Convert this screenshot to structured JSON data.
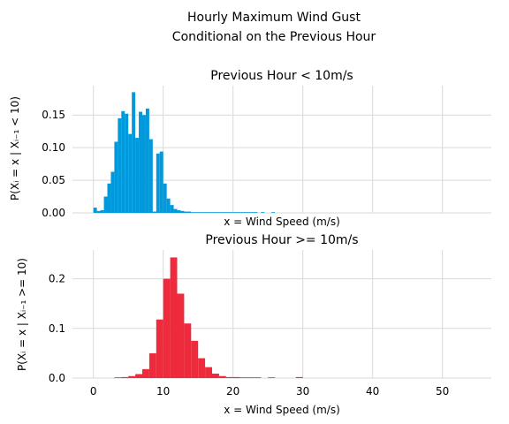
{
  "figure": {
    "title_line1": "Hourly Maximum Wind Gust",
    "title_line2": "Conditional on the Previous Hour"
  },
  "chart_data": [
    {
      "type": "bar",
      "title": "Previous Hour < 10m/s",
      "xlabel": "x = Wind Speed (m/s)",
      "ylabel": "P(Xᵢ = x | Xᵢ₋₁ < 10)",
      "xlim": [
        -3,
        57
      ],
      "ylim": [
        0,
        0.195
      ],
      "bin_width": 0.5,
      "xticks": [
        0,
        10,
        20,
        30,
        40,
        50
      ],
      "yticks": [
        0.0,
        0.05,
        0.1,
        0.15
      ],
      "ytick_labels": [
        "0.00",
        "0.05",
        "0.10",
        "0.15"
      ],
      "show_xtick_labels": false,
      "grid": true,
      "color": "#0099dc",
      "x": [
        0.0,
        0.5,
        1.0,
        1.5,
        2.0,
        2.5,
        3.0,
        3.5,
        4.0,
        4.5,
        5.0,
        5.5,
        6.0,
        6.5,
        7.0,
        7.5,
        8.0,
        8.5,
        9.0,
        9.5,
        10.0,
        10.5,
        11.0,
        11.5,
        12.0,
        12.5,
        13.0,
        13.5,
        14.0,
        14.5,
        15.0,
        15.5,
        16.0,
        16.5,
        17.0,
        17.5,
        18.0,
        18.5,
        19.0,
        19.5,
        20.0,
        20.5,
        21.0,
        21.5,
        22.0,
        22.5,
        23.0,
        24.0,
        25.5
      ],
      "values": [
        0.008,
        0.003,
        0.004,
        0.025,
        0.045,
        0.063,
        0.109,
        0.145,
        0.156,
        0.152,
        0.121,
        0.185,
        0.115,
        0.155,
        0.15,
        0.16,
        0.113,
        0.002,
        0.091,
        0.094,
        0.045,
        0.022,
        0.012,
        0.006,
        0.004,
        0.003,
        0.002,
        0.002,
        0.001,
        0.001,
        0.001,
        0.001,
        0.001,
        0.001,
        0.001,
        0.001,
        0.001,
        0.001,
        0.001,
        0.001,
        0.001,
        0.001,
        0.001,
        0.001,
        0.001,
        0.001,
        0.001,
        0.001,
        0.001
      ]
    },
    {
      "type": "bar",
      "title": "Previous Hour >= 10m/s",
      "xlabel": "x = Wind Speed (m/s)",
      "ylabel": "P(Xᵢ = x | Xᵢ₋₁ >= 10)",
      "xlim": [
        -3,
        57
      ],
      "ylim": [
        0,
        0.258
      ],
      "bin_width": 1,
      "xticks": [
        0,
        10,
        20,
        30,
        40,
        50
      ],
      "xtick_labels": [
        "0",
        "10",
        "20",
        "30",
        "40",
        "50"
      ],
      "yticks": [
        0.0,
        0.1,
        0.2
      ],
      "ytick_labels": [
        "0.0",
        "0.1",
        "0.2"
      ],
      "show_xtick_labels": true,
      "grid": true,
      "color": "#ee2a3c",
      "x": [
        3,
        4,
        5,
        6,
        7,
        8,
        9,
        10,
        11,
        12,
        13,
        14,
        15,
        16,
        17,
        18,
        19,
        20,
        21,
        22,
        23,
        25,
        29
      ],
      "values": [
        0.001,
        0.002,
        0.004,
        0.008,
        0.018,
        0.05,
        0.118,
        0.2,
        0.243,
        0.17,
        0.11,
        0.075,
        0.04,
        0.022,
        0.009,
        0.004,
        0.002,
        0.002,
        0.001,
        0.001,
        0.001,
        0.001,
        0.002
      ]
    }
  ]
}
